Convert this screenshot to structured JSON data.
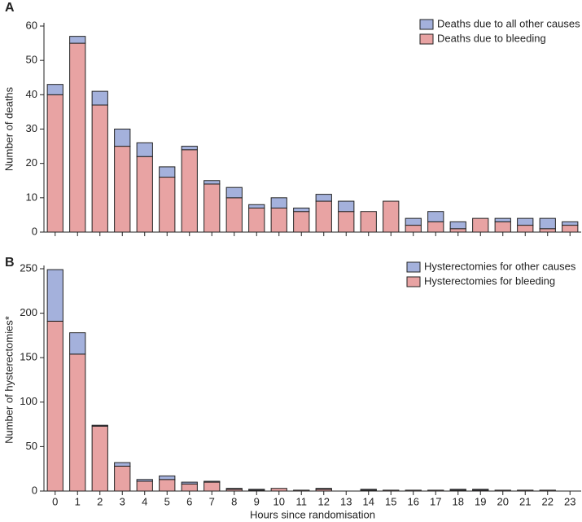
{
  "chart_data": [
    {
      "type": "bar",
      "stacked": true,
      "panel_label": "A",
      "ylabel": "Number of deaths",
      "categories": [
        null,
        null,
        null,
        null,
        null,
        null,
        null,
        null,
        null,
        null,
        null,
        null,
        null,
        null,
        null,
        null,
        null,
        null,
        null,
        null,
        null,
        null,
        null,
        null
      ],
      "series": [
        {
          "name": "Deaths due to bleeding",
          "color": "#e8a3a3",
          "values": [
            40,
            55,
            37,
            25,
            22,
            16,
            24,
            14,
            10,
            7,
            7,
            6,
            9,
            6,
            6,
            9,
            2,
            3,
            1,
            4,
            3,
            2,
            1,
            2
          ]
        },
        {
          "name": "Deaths due to all other causes",
          "color": "#a4b1dc",
          "values": [
            3,
            2,
            4,
            5,
            4,
            3,
            1,
            1,
            3,
            1,
            3,
            1,
            2,
            3,
            0,
            0,
            2,
            3,
            2,
            0,
            1,
            2,
            3,
            1
          ]
        }
      ],
      "ylim": [
        0,
        60
      ],
      "yticks": [
        0,
        10,
        20,
        30,
        40,
        50,
        60
      ],
      "legend": "upper right"
    },
    {
      "type": "bar",
      "stacked": true,
      "panel_label": "B",
      "ylabel": "Number of hysterectomies*",
      "xlabel": "Hours since randomisation",
      "categories": [
        "0",
        "1",
        "2",
        "3",
        "4",
        "5",
        "6",
        "7",
        "8",
        "9",
        "10",
        "11",
        "12",
        "13",
        "14",
        "15",
        "16",
        "17",
        "18",
        "19",
        "20",
        "21",
        "22",
        "23"
      ],
      "series": [
        {
          "name": "Hysterectomies for bleeding",
          "color": "#e8a3a3",
          "values": [
            191,
            154,
            73,
            28,
            11,
            13,
            8,
            10,
            2,
            1,
            3,
            1,
            2,
            0,
            1,
            1,
            1,
            1,
            1,
            1,
            1,
            1,
            1,
            0
          ]
        },
        {
          "name": "Hysterectomies for other causes",
          "color": "#a4b1dc",
          "values": [
            58,
            24,
            1,
            4,
            2,
            4,
            2,
            1,
            1,
            1,
            0,
            0,
            1,
            0,
            1,
            0,
            0,
            0,
            1,
            1,
            0,
            0,
            0,
            0
          ]
        }
      ],
      "ylim": [
        0,
        250
      ],
      "yticks": [
        0,
        50,
        100,
        150,
        200,
        250
      ],
      "legend": "upper right"
    }
  ]
}
